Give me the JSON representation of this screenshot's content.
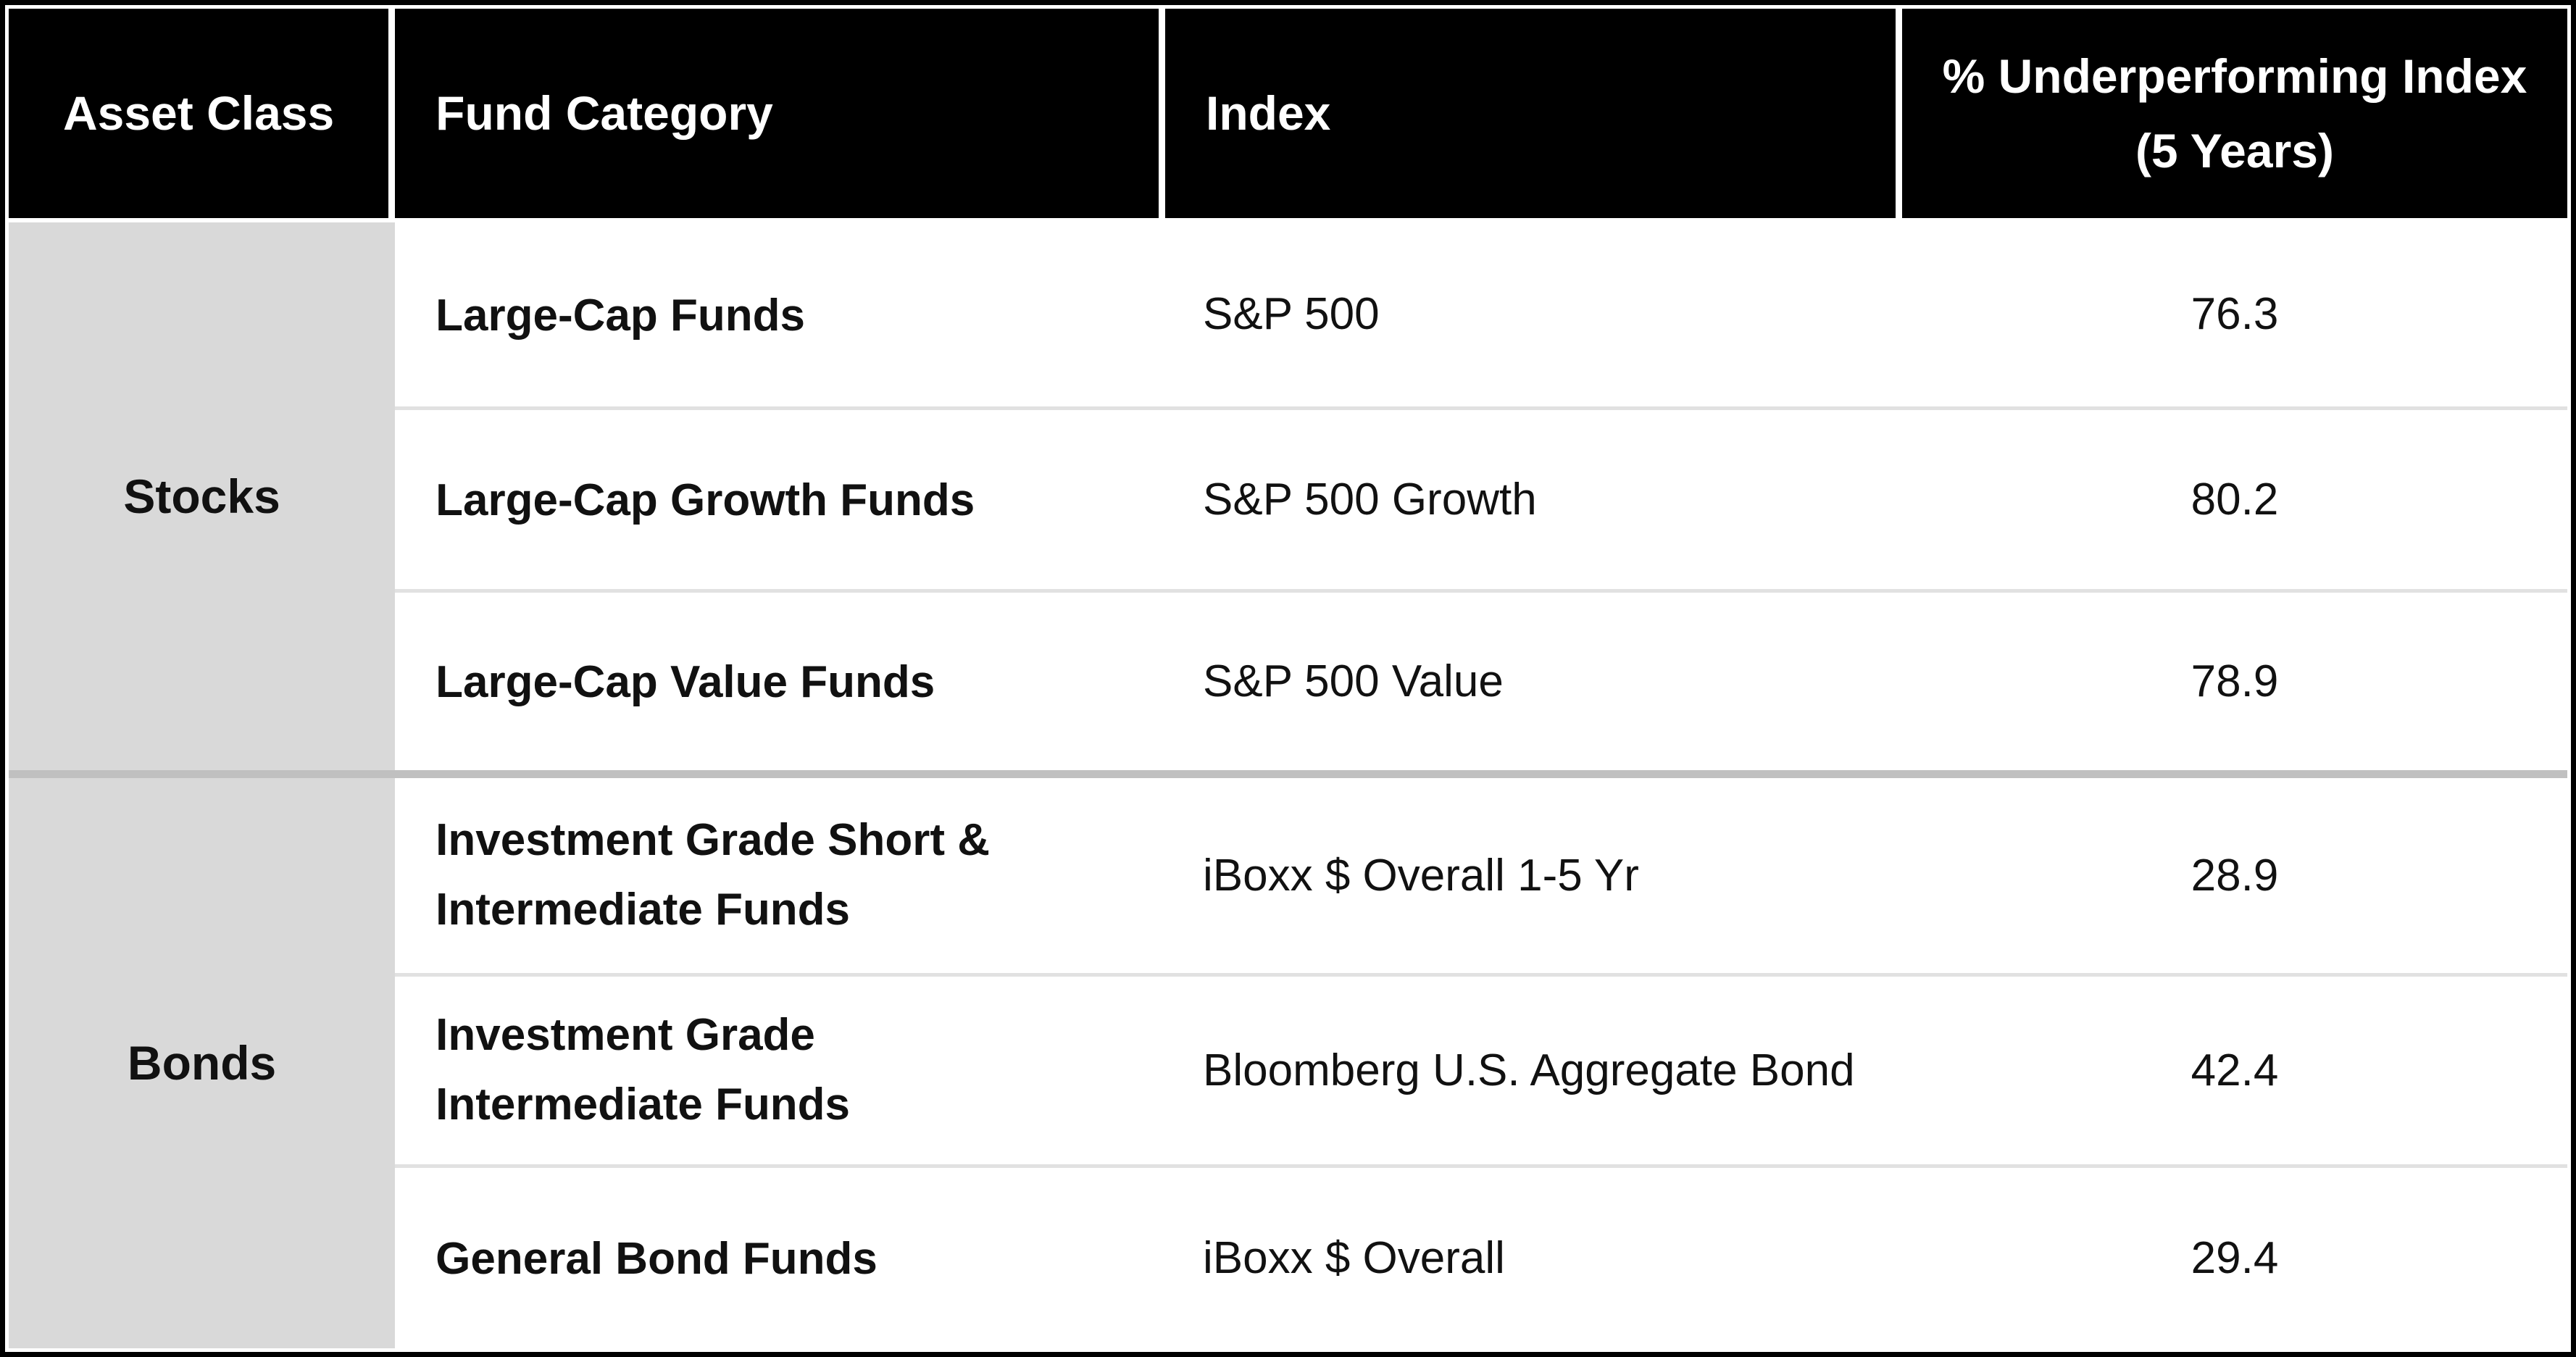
{
  "chart_data": {
    "type": "table",
    "columns": [
      "Asset Class",
      "Fund Category",
      "Index",
      "% Underperforming Index (5 Years)"
    ],
    "groups": [
      {
        "asset_class": "Stocks",
        "rows": [
          {
            "fund_category": "Large-Cap Funds",
            "index": "S&P 500",
            "pct_underperforming": "76.3"
          },
          {
            "fund_category": "Large-Cap Growth Funds",
            "index": "S&P 500 Growth",
            "pct_underperforming": "80.2"
          },
          {
            "fund_category": "Large-Cap Value Funds",
            "index": "S&P 500 Value",
            "pct_underperforming": "78.9"
          }
        ]
      },
      {
        "asset_class": "Bonds",
        "rows": [
          {
            "fund_category": "Investment Grade Short & Intermediate Funds",
            "index": "iBoxx $ Overall 1-5 Yr",
            "pct_underperforming": "28.9"
          },
          {
            "fund_category": "Investment Grade Intermediate Funds",
            "index": "Bloomberg U.S. Aggregate Bond",
            "pct_underperforming": "42.4"
          },
          {
            "fund_category": "General Bond Funds",
            "index": "iBoxx $ Overall",
            "pct_underperforming": "29.4"
          }
        ]
      }
    ],
    "layout": {
      "header_background": "#000000",
      "header_text_color": "#ffffff",
      "asset_cell_background": "#d9d9d9",
      "row_divider_color": "#e1e1e1",
      "group_divider_color": "#c0c0c0",
      "outer_border_color": "#000000"
    }
  }
}
